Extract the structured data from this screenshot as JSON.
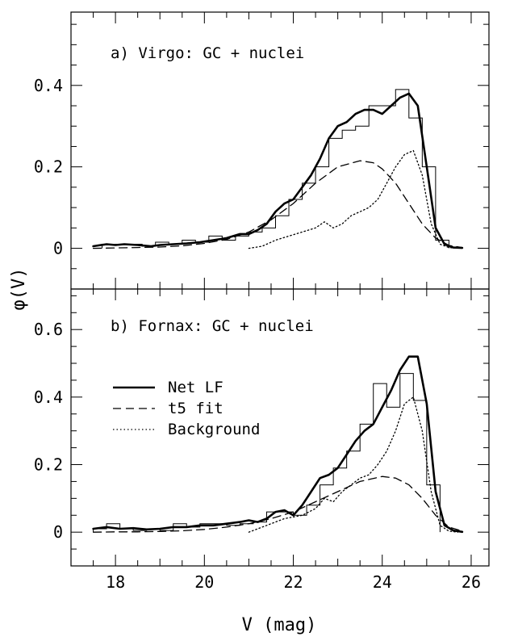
{
  "figure": {
    "ylabel": "φ(V)",
    "xlabel": "V (mag)"
  },
  "legend": [
    {
      "label": "Net LF",
      "style": "solid"
    },
    {
      "label": "t5 fit",
      "style": "dashed"
    },
    {
      "label": "Background",
      "style": "dotted"
    }
  ],
  "chart_data": [
    {
      "type": "line",
      "title": "a) Virgo: GC + nuclei",
      "xlabel": "V (mag)",
      "ylabel": "φ(V)",
      "xlim": [
        17,
        26.4
      ],
      "ylim": [
        -0.1,
        0.58
      ],
      "xticks": [
        18,
        20,
        22,
        24,
        26
      ],
      "yticks": [
        0,
        0.2,
        0.4
      ],
      "grid": false,
      "histogram": {
        "edges": [
          17.7,
          18.0,
          18.3,
          18.6,
          18.9,
          19.2,
          19.5,
          19.8,
          20.1,
          20.4,
          20.7,
          21.0,
          21.3,
          21.6,
          21.9,
          22.2,
          22.5,
          22.8,
          23.1,
          23.4,
          23.7,
          24.0,
          24.3,
          24.6,
          24.9,
          25.2,
          25.5
        ],
        "values": [
          0.008,
          0.01,
          0.01,
          0.005,
          0.015,
          0.01,
          0.02,
          0.015,
          0.03,
          0.02,
          0.03,
          0.04,
          0.05,
          0.08,
          0.12,
          0.16,
          0.2,
          0.27,
          0.29,
          0.3,
          0.35,
          0.35,
          0.39,
          0.32,
          0.2,
          0.02
        ]
      },
      "series": [
        {
          "name": "Net LF",
          "style": "solid",
          "x": [
            17.5,
            17.8,
            18.0,
            18.2,
            18.5,
            18.8,
            19.0,
            19.3,
            19.6,
            19.9,
            20.2,
            20.5,
            20.8,
            21.0,
            21.2,
            21.4,
            21.6,
            21.8,
            22.0,
            22.2,
            22.4,
            22.6,
            22.8,
            23.0,
            23.2,
            23.4,
            23.6,
            23.8,
            24.0,
            24.2,
            24.4,
            24.6,
            24.8,
            25.0,
            25.2,
            25.4,
            25.6,
            25.8
          ],
          "y": [
            0.005,
            0.01,
            0.008,
            0.01,
            0.008,
            0.005,
            0.008,
            0.01,
            0.012,
            0.015,
            0.02,
            0.025,
            0.035,
            0.035,
            0.045,
            0.06,
            0.09,
            0.11,
            0.12,
            0.15,
            0.18,
            0.22,
            0.27,
            0.3,
            0.31,
            0.33,
            0.34,
            0.34,
            0.33,
            0.35,
            0.37,
            0.38,
            0.35,
            0.2,
            0.05,
            0.01,
            0.002,
            0.001
          ]
        },
        {
          "name": "t5 fit",
          "style": "dashed",
          "x": [
            17.5,
            18.0,
            18.5,
            19.0,
            19.5,
            20.0,
            20.5,
            21.0,
            21.5,
            22.0,
            22.5,
            23.0,
            23.5,
            23.8,
            24.0,
            24.3,
            24.6,
            24.9,
            25.2,
            25.5,
            25.8
          ],
          "y": [
            0.0,
            0.001,
            0.002,
            0.003,
            0.006,
            0.012,
            0.022,
            0.04,
            0.07,
            0.11,
            0.16,
            0.2,
            0.215,
            0.21,
            0.195,
            0.16,
            0.11,
            0.06,
            0.025,
            0.007,
            0.002
          ]
        },
        {
          "name": "Background",
          "style": "dotted",
          "x": [
            21.0,
            21.3,
            21.6,
            21.9,
            22.2,
            22.5,
            22.7,
            22.9,
            23.1,
            23.3,
            23.5,
            23.7,
            23.9,
            24.1,
            24.3,
            24.5,
            24.7,
            24.9,
            25.1,
            25.3,
            25.5,
            25.7
          ],
          "y": [
            0.0,
            0.005,
            0.02,
            0.03,
            0.04,
            0.05,
            0.065,
            0.05,
            0.06,
            0.08,
            0.09,
            0.1,
            0.12,
            0.16,
            0.2,
            0.23,
            0.24,
            0.18,
            0.06,
            0.01,
            0.002,
            0.0
          ]
        }
      ]
    },
    {
      "type": "line",
      "title": "b) Fornax: GC + nuclei",
      "xlabel": "V (mag)",
      "ylabel": "φ(V)",
      "xlim": [
        17,
        26.4
      ],
      "ylim": [
        -0.1,
        0.72
      ],
      "xticks": [
        18,
        20,
        22,
        24,
        26
      ],
      "yticks": [
        0,
        0.2,
        0.4,
        0.6
      ],
      "grid": false,
      "histogram": {
        "edges": [
          17.5,
          17.8,
          18.1,
          18.4,
          18.7,
          19.0,
          19.3,
          19.6,
          19.9,
          20.2,
          20.5,
          20.8,
          21.1,
          21.4,
          21.7,
          22.0,
          22.3,
          22.6,
          22.9,
          23.2,
          23.5,
          23.8,
          24.1,
          24.4,
          24.7,
          25.0,
          25.3
        ],
        "values": [
          0.01,
          0.025,
          0.01,
          0.005,
          0.01,
          0.005,
          0.025,
          0.015,
          0.025,
          0.025,
          0.02,
          0.025,
          0.03,
          0.06,
          0.06,
          0.05,
          0.08,
          0.14,
          0.19,
          0.24,
          0.32,
          0.44,
          0.37,
          0.47,
          0.39,
          0.14
        ]
      },
      "series": [
        {
          "name": "Net LF",
          "style": "solid",
          "x": [
            17.5,
            17.8,
            18.1,
            18.4,
            18.7,
            19.0,
            19.3,
            19.6,
            19.9,
            20.2,
            20.5,
            20.8,
            21.0,
            21.2,
            21.4,
            21.6,
            21.8,
            22.0,
            22.2,
            22.4,
            22.6,
            22.8,
            23.0,
            23.2,
            23.4,
            23.6,
            23.8,
            24.0,
            24.2,
            24.4,
            24.6,
            24.8,
            25.0,
            25.2,
            25.4,
            25.6,
            25.8
          ],
          "y": [
            0.01,
            0.015,
            0.01,
            0.012,
            0.008,
            0.01,
            0.015,
            0.015,
            0.02,
            0.02,
            0.025,
            0.03,
            0.035,
            0.03,
            0.04,
            0.06,
            0.065,
            0.05,
            0.08,
            0.12,
            0.16,
            0.17,
            0.19,
            0.23,
            0.27,
            0.3,
            0.32,
            0.37,
            0.42,
            0.48,
            0.52,
            0.52,
            0.38,
            0.12,
            0.02,
            0.005,
            0.001
          ]
        },
        {
          "name": "t5 fit",
          "style": "dashed",
          "x": [
            17.5,
            18.0,
            18.5,
            19.0,
            19.5,
            20.0,
            20.5,
            21.0,
            21.5,
            22.0,
            22.5,
            23.0,
            23.5,
            24.0,
            24.3,
            24.6,
            24.9,
            25.2,
            25.5,
            25.8
          ],
          "y": [
            0.0,
            0.001,
            0.001,
            0.002,
            0.004,
            0.008,
            0.015,
            0.025,
            0.04,
            0.06,
            0.09,
            0.12,
            0.15,
            0.165,
            0.16,
            0.14,
            0.1,
            0.05,
            0.015,
            0.003
          ]
        },
        {
          "name": "Background",
          "style": "dotted",
          "x": [
            21.0,
            21.4,
            21.8,
            22.2,
            22.5,
            22.7,
            22.9,
            23.1,
            23.3,
            23.5,
            23.7,
            23.9,
            24.1,
            24.3,
            24.5,
            24.7,
            24.9,
            25.1,
            25.3,
            25.5,
            25.7
          ],
          "y": [
            0.0,
            0.02,
            0.04,
            0.05,
            0.07,
            0.1,
            0.09,
            0.12,
            0.14,
            0.16,
            0.17,
            0.2,
            0.24,
            0.3,
            0.38,
            0.4,
            0.3,
            0.12,
            0.02,
            0.003,
            0.0
          ]
        }
      ]
    }
  ]
}
